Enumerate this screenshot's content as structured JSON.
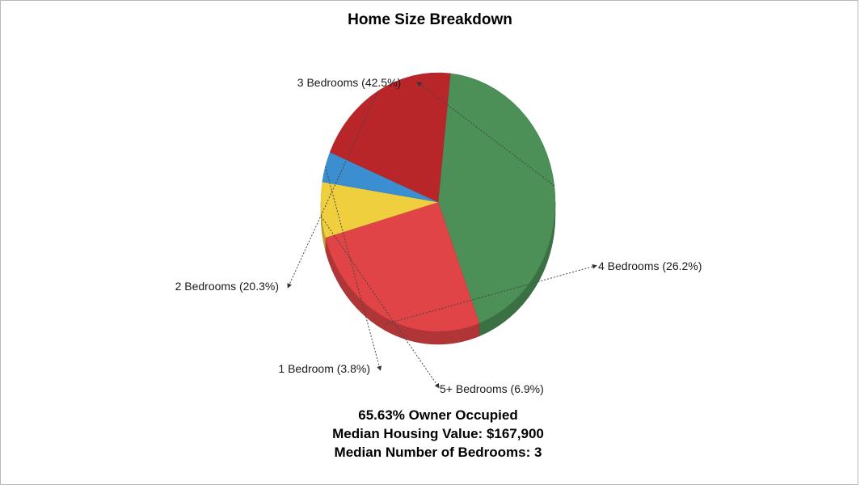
{
  "chart_data": {
    "type": "pie",
    "title": "Home Size Breakdown",
    "slices": [
      {
        "label": "3 Bedrooms (42.5%)",
        "category": "3 Bedrooms",
        "value": 42.5,
        "color": "#4c8f57"
      },
      {
        "label": "4 Bedrooms (26.2%)",
        "category": "4 Bedrooms",
        "value": 26.2,
        "color": "#e04446"
      },
      {
        "label": "5+ Bedrooms (6.9%)",
        "category": "5+ Bedrooms",
        "value": 6.9,
        "color": "#f0cf3f"
      },
      {
        "label": "1 Bedroom (3.8%)",
        "category": "1 Bedroom",
        "value": 3.8,
        "color": "#3b8fd0"
      },
      {
        "label": "2 Bedrooms (20.3%)",
        "category": "2 Bedrooms",
        "value": 20.3,
        "color": "#b8262a"
      }
    ],
    "legend": "none",
    "style": "3d-tilted"
  },
  "stats": {
    "owner_occupied": "65.63% Owner Occupied",
    "median_value": "Median Housing Value: $167,900",
    "median_bedrooms": "Median Number of Bedrooms: 3"
  }
}
